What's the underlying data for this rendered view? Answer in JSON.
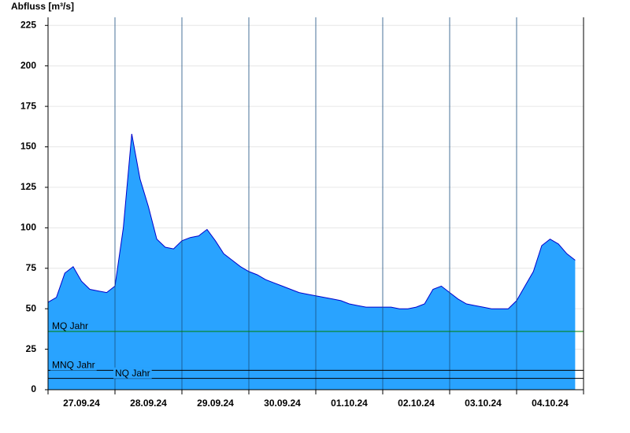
{
  "chart_data": {
    "type": "area",
    "title": "Abfluss [m³/s]",
    "days": [
      {
        "label": "27.09.24",
        "values": [
          54,
          57,
          72,
          76,
          67,
          62,
          61,
          60
        ]
      },
      {
        "label": "28.09.24",
        "values": [
          64,
          100,
          158,
          130,
          113,
          93,
          88,
          87
        ]
      },
      {
        "label": "29.09.24",
        "values": [
          92,
          94,
          95,
          99,
          92,
          84,
          80,
          76
        ]
      },
      {
        "label": "30.09.24",
        "values": [
          73,
          71,
          68,
          66,
          64,
          62,
          60,
          59
        ]
      },
      {
        "label": "01.10.24",
        "values": [
          58,
          57,
          56,
          55,
          53,
          52,
          51,
          51
        ]
      },
      {
        "label": "02.10.24",
        "values": [
          51,
          51,
          50,
          50,
          51,
          53,
          62,
          64
        ]
      },
      {
        "label": "03.10.24",
        "values": [
          60,
          56,
          53,
          52,
          51,
          50,
          50,
          50
        ]
      },
      {
        "label": "04.10.24",
        "values": [
          55,
          64,
          73,
          89,
          93,
          90,
          84,
          80
        ]
      }
    ],
    "color": "#29a3ff",
    "line_color": "#0000cc",
    "ylim": [
      0,
      230
    ],
    "yticks": [
      0,
      25,
      50,
      75,
      100,
      125,
      150,
      175,
      200,
      225
    ],
    "grid": true,
    "reference_lines": [
      {
        "name": "MQ Jahr",
        "value": 36,
        "color": "#008000"
      },
      {
        "name": "MNQ Jahr",
        "value": 12,
        "color": "#000000"
      },
      {
        "name": "NQ Jahr",
        "value": 7,
        "color": "#000000"
      }
    ]
  }
}
